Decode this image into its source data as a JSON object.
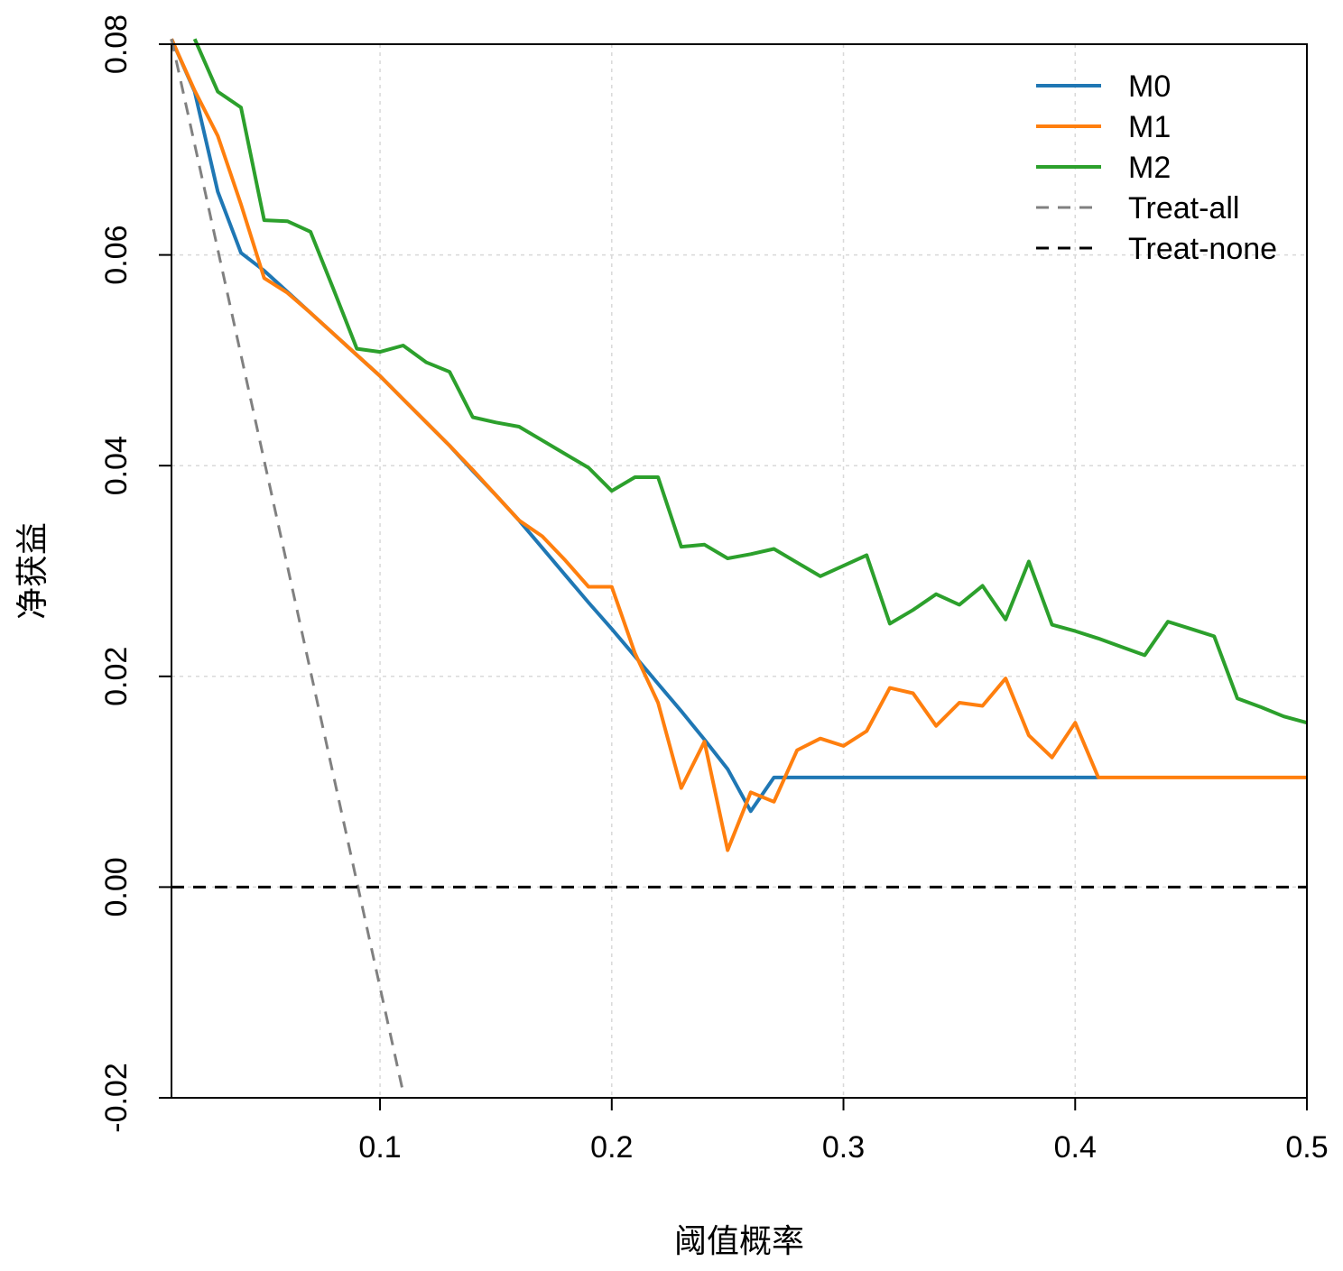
{
  "chart_data": {
    "type": "line",
    "title": "",
    "xlabel": "阈值概率",
    "ylabel": "净获益",
    "xlim": [
      0.01,
      0.5
    ],
    "ylim": [
      -0.02,
      0.08
    ],
    "xticks": [
      0.1,
      0.2,
      0.3,
      0.4,
      0.5
    ],
    "xtick_labels": [
      "0.1",
      "0.2",
      "0.3",
      "0.4",
      "0.5"
    ],
    "yticks": [
      -0.02,
      0.0,
      0.02,
      0.04,
      0.06,
      0.08
    ],
    "ytick_labels": [
      "-0.02",
      "0.00",
      "0.02",
      "0.04",
      "0.06",
      "0.08"
    ],
    "grid": true,
    "legend_position": "top-right",
    "series": [
      {
        "name": "M0",
        "color": "#1f77b4",
        "dash": "solid",
        "x": [
          0.01,
          0.02,
          0.03,
          0.04,
          0.05,
          0.06,
          0.07,
          0.08,
          0.09,
          0.1,
          0.11,
          0.12,
          0.13,
          0.14,
          0.15,
          0.16,
          0.17,
          0.18,
          0.19,
          0.2,
          0.21,
          0.22,
          0.23,
          0.24,
          0.25,
          0.26,
          0.27,
          0.28,
          0.29,
          0.3,
          0.31,
          0.32,
          0.33,
          0.34,
          0.35,
          0.36,
          0.37,
          0.38,
          0.39,
          0.4,
          0.41
        ],
        "y": [
          0.0805,
          0.0755,
          0.066,
          0.0602,
          0.0585,
          0.0565,
          0.0545,
          0.0525,
          0.0505,
          0.0485,
          0.0463,
          0.0441,
          0.0419,
          0.0395,
          0.0372,
          0.0348,
          0.0322,
          0.0296,
          0.027,
          0.0245,
          0.0219,
          0.0193,
          0.0167,
          0.014,
          0.0112,
          0.0072,
          0.0104,
          0.0104,
          0.0104,
          0.0104,
          0.0104,
          0.0104,
          0.0104,
          0.0104,
          0.0104,
          0.0104,
          0.0104,
          0.0104,
          0.0104,
          0.0104,
          0.0104
        ]
      },
      {
        "name": "M1",
        "color": "#ff7f0e",
        "dash": "solid",
        "x": [
          0.01,
          0.02,
          0.03,
          0.04,
          0.05,
          0.06,
          0.07,
          0.08,
          0.09,
          0.1,
          0.11,
          0.12,
          0.13,
          0.14,
          0.15,
          0.16,
          0.17,
          0.18,
          0.19,
          0.2,
          0.21,
          0.22,
          0.23,
          0.24,
          0.25,
          0.26,
          0.27,
          0.28,
          0.29,
          0.3,
          0.31,
          0.32,
          0.33,
          0.34,
          0.35,
          0.36,
          0.37,
          0.38,
          0.39,
          0.4,
          0.41,
          0.42,
          0.43,
          0.44,
          0.45,
          0.46,
          0.47,
          0.48,
          0.49,
          0.5
        ],
        "y": [
          0.0805,
          0.0756,
          0.0713,
          0.0648,
          0.0578,
          0.0564,
          0.0545,
          0.0525,
          0.0505,
          0.0485,
          0.0463,
          0.0441,
          0.0419,
          0.0396,
          0.0372,
          0.0348,
          0.0333,
          0.031,
          0.0285,
          0.0285,
          0.0222,
          0.0175,
          0.0094,
          0.0138,
          0.0035,
          0.009,
          0.0081,
          0.013,
          0.0141,
          0.0134,
          0.0148,
          0.0189,
          0.0184,
          0.0153,
          0.0175,
          0.0172,
          0.0198,
          0.0144,
          0.0123,
          0.0156,
          0.0104,
          0.0104,
          0.0104,
          0.0104,
          0.0104,
          0.0104,
          0.0104,
          0.0104,
          0.0104,
          0.0104
        ]
      },
      {
        "name": "M2",
        "color": "#2ca02c",
        "dash": "solid",
        "x": [
          0.02,
          0.03,
          0.04,
          0.05,
          0.06,
          0.07,
          0.08,
          0.09,
          0.1,
          0.11,
          0.12,
          0.13,
          0.14,
          0.15,
          0.16,
          0.17,
          0.18,
          0.19,
          0.2,
          0.21,
          0.22,
          0.23,
          0.24,
          0.25,
          0.26,
          0.27,
          0.28,
          0.29,
          0.3,
          0.31,
          0.32,
          0.33,
          0.34,
          0.35,
          0.36,
          0.37,
          0.38,
          0.39,
          0.4,
          0.41,
          0.42,
          0.43,
          0.44,
          0.45,
          0.46,
          0.47,
          0.48,
          0.49,
          0.5
        ],
        "y": [
          0.0805,
          0.0755,
          0.074,
          0.0633,
          0.0632,
          0.0622,
          0.0567,
          0.0511,
          0.0508,
          0.0514,
          0.0498,
          0.0489,
          0.0446,
          0.0441,
          0.0437,
          0.0424,
          0.0411,
          0.0398,
          0.0376,
          0.0389,
          0.0389,
          0.0323,
          0.0325,
          0.0312,
          0.0316,
          0.0321,
          0.0308,
          0.0295,
          0.0305,
          0.0315,
          0.025,
          0.0263,
          0.0278,
          0.0268,
          0.0286,
          0.0254,
          0.0309,
          0.0249,
          0.0243,
          0.0236,
          0.0228,
          0.022,
          0.0252,
          0.0245,
          0.0238,
          0.0179,
          0.0171,
          0.0162,
          0.0156
        ]
      },
      {
        "name": "Treat-all",
        "color": "#808080",
        "dash": "dashed",
        "x": [
          0.01,
          0.11
        ],
        "y": [
          0.0805,
          -0.0195
        ]
      },
      {
        "name": "Treat-none",
        "color": "#000000",
        "dash": "dashed",
        "x": [
          0.01,
          0.5
        ],
        "y": [
          0.0,
          0.0
        ]
      }
    ]
  }
}
